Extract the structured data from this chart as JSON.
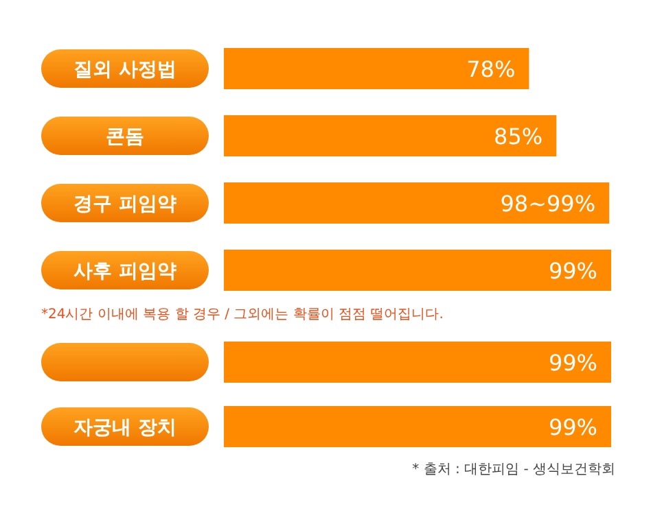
{
  "chart_data": {
    "type": "bar",
    "orientation": "horizontal",
    "categories": [
      "질외 사정법",
      "콘돔",
      "경구 피임약",
      "사후 피임약",
      null,
      "자궁내 장치"
    ],
    "values": [
      78,
      85,
      98.5,
      99,
      99,
      99
    ],
    "value_labels": [
      "78%",
      "85%",
      "98~99%",
      "99%",
      "99%",
      "99%"
    ],
    "color": "#ff8a00",
    "annotations": [
      "*24시간 이내에 복용 할 경우 / 그외에는 확률이 점점 떨어집니다.",
      "* 출처 : 대한피임 - 생식보건학회"
    ]
  }
}
